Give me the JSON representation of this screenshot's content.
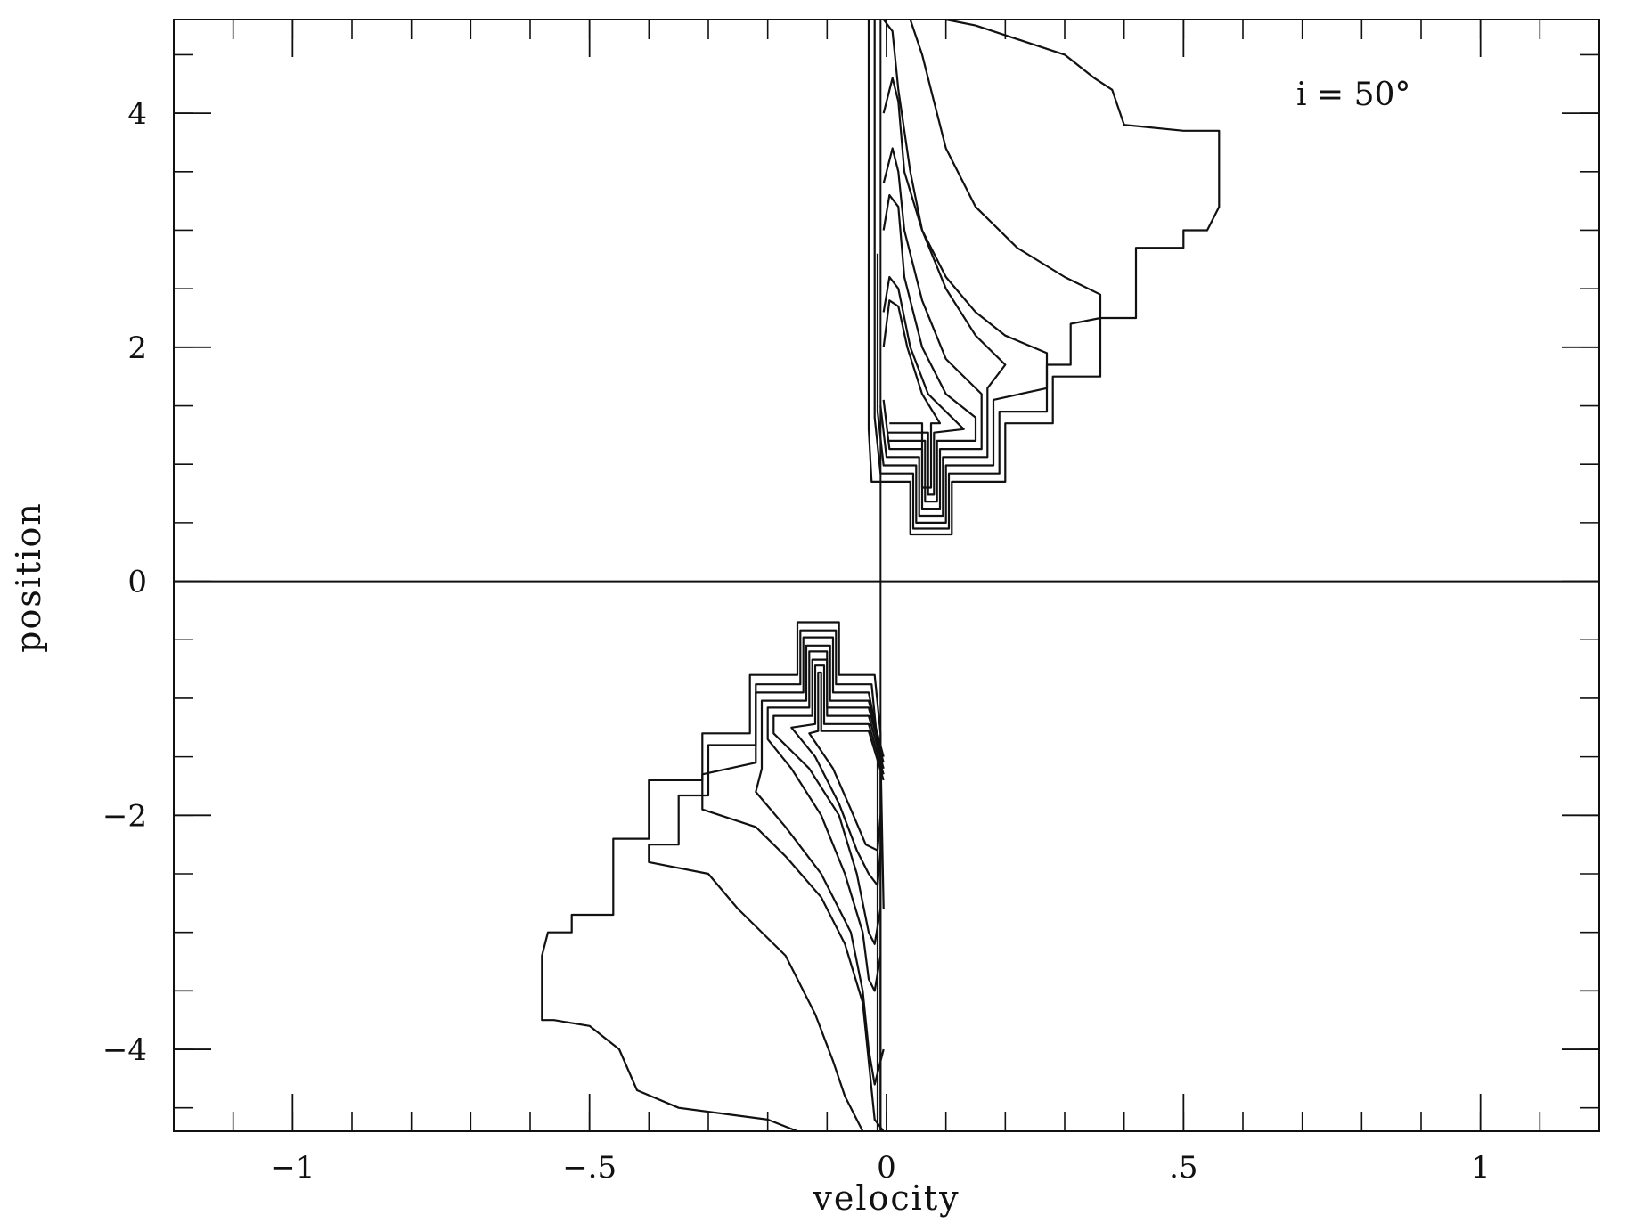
{
  "chart_data": {
    "type": "line",
    "title": "",
    "xlabel": "velocity",
    "ylabel": "position",
    "annotation": "i = 50°",
    "xlim": [
      -1.2,
      1.2
    ],
    "ylim": [
      -4.7,
      4.8
    ],
    "x_ticks": [
      {
        "value": -1,
        "label": "−1"
      },
      {
        "value": -0.5,
        "label": "−.5"
      },
      {
        "value": 0,
        "label": "0"
      },
      {
        "value": 0.5,
        "label": ".5"
      },
      {
        "value": 1,
        "label": "1"
      }
    ],
    "y_ticks": [
      {
        "value": -4,
        "label": "−4"
      },
      {
        "value": -2,
        "label": "−2"
      },
      {
        "value": 0,
        "label": "0"
      },
      {
        "value": 2,
        "label": "2"
      },
      {
        "value": 4,
        "label": "4"
      }
    ],
    "x_minor_step": 0.1,
    "y_minor_step": 0.5,
    "grid": false,
    "reference_lines": [
      {
        "orientation": "horizontal",
        "value": 0
      },
      {
        "orientation": "vertical",
        "value": -0.01
      }
    ],
    "series": [
      {
        "points": [
          [
            -0.03,
            4.8
          ],
          [
            -0.03,
            3.0
          ],
          [
            -0.03,
            2.0
          ],
          [
            -0.03,
            1.3
          ],
          [
            -0.025,
            0.85
          ],
          [
            0.04,
            0.85
          ],
          [
            0.04,
            0.4
          ],
          [
            0.11,
            0.4
          ],
          [
            0.11,
            0.85
          ],
          [
            0.2,
            0.85
          ],
          [
            0.2,
            1.35
          ],
          [
            0.28,
            1.35
          ],
          [
            0.28,
            1.75
          ],
          [
            0.36,
            1.75
          ],
          [
            0.36,
            2.25
          ],
          [
            0.42,
            2.25
          ],
          [
            0.42,
            2.85
          ],
          [
            0.5,
            2.85
          ],
          [
            0.5,
            3.0
          ],
          [
            0.54,
            3.0
          ],
          [
            0.56,
            3.2
          ],
          [
            0.56,
            3.85
          ],
          [
            0.5,
            3.85
          ],
          [
            0.4,
            3.9
          ],
          [
            0.38,
            4.2
          ],
          [
            0.35,
            4.3
          ],
          [
            0.3,
            4.5
          ],
          [
            0.15,
            4.75
          ],
          [
            0.1,
            4.8
          ]
        ]
      },
      {
        "points": [
          [
            -0.02,
            4.8
          ],
          [
            -0.02,
            3.0
          ],
          [
            -0.02,
            1.4
          ],
          [
            -0.01,
            0.92
          ],
          [
            0.045,
            0.92
          ],
          [
            0.045,
            0.45
          ],
          [
            0.105,
            0.45
          ],
          [
            0.105,
            0.92
          ],
          [
            0.19,
            0.92
          ],
          [
            0.19,
            1.45
          ],
          [
            0.27,
            1.45
          ],
          [
            0.27,
            1.85
          ],
          [
            0.31,
            1.85
          ],
          [
            0.31,
            2.2
          ],
          [
            0.36,
            2.25
          ],
          [
            0.36,
            2.45
          ],
          [
            0.3,
            2.6
          ],
          [
            0.22,
            2.85
          ],
          [
            0.15,
            3.2
          ],
          [
            0.1,
            3.7
          ],
          [
            0.08,
            4.1
          ],
          [
            0.06,
            4.5
          ],
          [
            0.04,
            4.8
          ]
        ]
      },
      {
        "points": [
          [
            -0.015,
            2.8
          ],
          [
            -0.015,
            1.45
          ],
          [
            -0.005,
            0.99
          ],
          [
            0.05,
            0.99
          ],
          [
            0.05,
            0.5
          ],
          [
            0.1,
            0.5
          ],
          [
            0.1,
            0.99
          ],
          [
            0.18,
            0.99
          ],
          [
            0.18,
            1.55
          ],
          [
            0.27,
            1.65
          ],
          [
            0.27,
            1.95
          ],
          [
            0.2,
            2.1
          ],
          [
            0.15,
            2.3
          ],
          [
            0.1,
            2.6
          ],
          [
            0.06,
            3.0
          ],
          [
            0.04,
            3.5
          ],
          [
            0.02,
            4.2
          ],
          [
            0.01,
            4.7
          ],
          [
            -0.005,
            4.8
          ]
        ]
      },
      {
        "points": [
          [
            -0.01,
            1.5
          ],
          [
            0.0,
            1.06
          ],
          [
            0.055,
            1.06
          ],
          [
            0.055,
            0.56
          ],
          [
            0.095,
            0.56
          ],
          [
            0.095,
            1.06
          ],
          [
            0.17,
            1.06
          ],
          [
            0.17,
            1.65
          ],
          [
            0.2,
            1.85
          ],
          [
            0.15,
            2.1
          ],
          [
            0.1,
            2.5
          ],
          [
            0.06,
            3.0
          ],
          [
            0.03,
            3.5
          ],
          [
            0.02,
            4.1
          ],
          [
            0.01,
            4.3
          ],
          [
            -0.005,
            4.0
          ]
        ]
      },
      {
        "points": [
          [
            -0.005,
            1.55
          ],
          [
            0.005,
            1.13
          ],
          [
            0.06,
            1.13
          ],
          [
            0.06,
            0.62
          ],
          [
            0.09,
            0.62
          ],
          [
            0.09,
            1.13
          ],
          [
            0.16,
            1.13
          ],
          [
            0.16,
            1.6
          ],
          [
            0.1,
            1.9
          ],
          [
            0.06,
            2.4
          ],
          [
            0.03,
            3.0
          ],
          [
            0.02,
            3.5
          ],
          [
            0.01,
            3.7
          ],
          [
            -0.005,
            3.4
          ]
        ]
      },
      {
        "points": [
          [
            0.0,
            1.2
          ],
          [
            0.065,
            1.2
          ],
          [
            0.065,
            0.68
          ],
          [
            0.085,
            0.68
          ],
          [
            0.085,
            1.2
          ],
          [
            0.15,
            1.2
          ],
          [
            0.15,
            1.4
          ],
          [
            0.1,
            1.6
          ],
          [
            0.06,
            2.0
          ],
          [
            0.03,
            2.6
          ],
          [
            0.02,
            3.2
          ],
          [
            0.005,
            3.3
          ],
          [
            -0.005,
            3.0
          ]
        ]
      },
      {
        "points": [
          [
            0.0,
            1.27
          ],
          [
            0.07,
            1.27
          ],
          [
            0.07,
            0.74
          ],
          [
            0.08,
            0.74
          ],
          [
            0.08,
            1.27
          ],
          [
            0.13,
            1.3
          ],
          [
            0.07,
            1.6
          ],
          [
            0.04,
            2.0
          ],
          [
            0.02,
            2.5
          ],
          [
            0.005,
            2.6
          ],
          [
            -0.005,
            2.3
          ]
        ]
      },
      {
        "points": [
          [
            0.005,
            1.35
          ],
          [
            0.06,
            1.35
          ],
          [
            0.06,
            0.8
          ],
          [
            0.075,
            0.8
          ],
          [
            0.075,
            1.35
          ],
          [
            0.09,
            1.35
          ],
          [
            0.06,
            1.6
          ],
          [
            0.035,
            2.0
          ],
          [
            0.02,
            2.35
          ],
          [
            0.005,
            2.4
          ],
          [
            -0.005,
            2.0
          ]
        ]
      },
      {
        "points": [
          [
            -0.01,
            -4.7
          ],
          [
            -0.01,
            -3.0
          ],
          [
            -0.01,
            -2.0
          ],
          [
            -0.01,
            -1.3
          ],
          [
            -0.02,
            -0.8
          ],
          [
            -0.08,
            -0.8
          ],
          [
            -0.08,
            -0.35
          ],
          [
            -0.15,
            -0.35
          ],
          [
            -0.15,
            -0.8
          ],
          [
            -0.23,
            -0.8
          ],
          [
            -0.23,
            -1.3
          ],
          [
            -0.31,
            -1.3
          ],
          [
            -0.31,
            -1.7
          ],
          [
            -0.4,
            -1.7
          ],
          [
            -0.4,
            -2.2
          ],
          [
            -0.46,
            -2.2
          ],
          [
            -0.46,
            -2.85
          ],
          [
            -0.53,
            -2.85
          ],
          [
            -0.53,
            -3.0
          ],
          [
            -0.57,
            -3.0
          ],
          [
            -0.58,
            -3.2
          ],
          [
            -0.58,
            -3.75
          ],
          [
            -0.56,
            -3.75
          ],
          [
            -0.5,
            -3.8
          ],
          [
            -0.45,
            -4.0
          ],
          [
            -0.42,
            -4.35
          ],
          [
            -0.35,
            -4.5
          ],
          [
            -0.2,
            -4.6
          ],
          [
            -0.15,
            -4.7
          ]
        ]
      },
      {
        "points": [
          [
            -0.015,
            -4.7
          ],
          [
            -0.015,
            -3.0
          ],
          [
            -0.015,
            -1.4
          ],
          [
            -0.025,
            -0.88
          ],
          [
            -0.085,
            -0.88
          ],
          [
            -0.085,
            -0.42
          ],
          [
            -0.145,
            -0.42
          ],
          [
            -0.145,
            -0.88
          ],
          [
            -0.22,
            -0.88
          ],
          [
            -0.22,
            -1.4
          ],
          [
            -0.3,
            -1.4
          ],
          [
            -0.3,
            -1.83
          ],
          [
            -0.35,
            -1.83
          ],
          [
            -0.35,
            -2.25
          ],
          [
            -0.4,
            -2.25
          ],
          [
            -0.4,
            -2.4
          ],
          [
            -0.3,
            -2.5
          ],
          [
            -0.25,
            -2.8
          ],
          [
            -0.17,
            -3.2
          ],
          [
            -0.12,
            -3.7
          ],
          [
            -0.09,
            -4.1
          ],
          [
            -0.07,
            -4.4
          ],
          [
            -0.04,
            -4.7
          ]
        ]
      },
      {
        "points": [
          [
            -0.005,
            -2.8
          ],
          [
            -0.01,
            -1.45
          ],
          [
            -0.03,
            -0.95
          ],
          [
            -0.09,
            -0.95
          ],
          [
            -0.09,
            -0.48
          ],
          [
            -0.14,
            -0.48
          ],
          [
            -0.14,
            -0.95
          ],
          [
            -0.22,
            -0.95
          ],
          [
            -0.22,
            -1.55
          ],
          [
            -0.31,
            -1.65
          ],
          [
            -0.31,
            -1.95
          ],
          [
            -0.22,
            -2.1
          ],
          [
            -0.17,
            -2.35
          ],
          [
            -0.11,
            -2.7
          ],
          [
            -0.07,
            -3.1
          ],
          [
            -0.04,
            -3.6
          ],
          [
            -0.03,
            -4.1
          ],
          [
            -0.02,
            -4.6
          ],
          [
            -0.005,
            -4.7
          ]
        ]
      },
      {
        "points": [
          [
            -0.005,
            -1.5
          ],
          [
            -0.03,
            -1.02
          ],
          [
            -0.095,
            -1.02
          ],
          [
            -0.095,
            -0.55
          ],
          [
            -0.135,
            -0.55
          ],
          [
            -0.135,
            -1.02
          ],
          [
            -0.21,
            -1.02
          ],
          [
            -0.21,
            -1.6
          ],
          [
            -0.22,
            -1.8
          ],
          [
            -0.17,
            -2.1
          ],
          [
            -0.11,
            -2.5
          ],
          [
            -0.06,
            -3.0
          ],
          [
            -0.04,
            -3.5
          ],
          [
            -0.03,
            -4.0
          ],
          [
            -0.02,
            -4.3
          ],
          [
            -0.005,
            -4.0
          ]
        ]
      },
      {
        "points": [
          [
            -0.005,
            -1.55
          ],
          [
            -0.03,
            -1.08
          ],
          [
            -0.1,
            -1.08
          ],
          [
            -0.1,
            -0.6
          ],
          [
            -0.13,
            -0.6
          ],
          [
            -0.13,
            -1.08
          ],
          [
            -0.2,
            -1.08
          ],
          [
            -0.2,
            -1.35
          ],
          [
            -0.16,
            -1.6
          ],
          [
            -0.11,
            -2.0
          ],
          [
            -0.07,
            -2.5
          ],
          [
            -0.04,
            -3.0
          ],
          [
            -0.03,
            -3.4
          ],
          [
            -0.02,
            -3.5
          ],
          [
            -0.01,
            -3.2
          ]
        ]
      },
      {
        "points": [
          [
            -0.005,
            -1.6
          ],
          [
            -0.03,
            -1.15
          ],
          [
            -0.1,
            -1.15
          ],
          [
            -0.1,
            -0.67
          ],
          [
            -0.125,
            -0.67
          ],
          [
            -0.125,
            -1.15
          ],
          [
            -0.19,
            -1.15
          ],
          [
            -0.19,
            -1.3
          ],
          [
            -0.13,
            -1.6
          ],
          [
            -0.08,
            -2.0
          ],
          [
            -0.05,
            -2.5
          ],
          [
            -0.03,
            -3.0
          ],
          [
            -0.02,
            -3.1
          ],
          [
            -0.01,
            -2.8
          ]
        ]
      },
      {
        "points": [
          [
            -0.005,
            -1.65
          ],
          [
            -0.03,
            -1.22
          ],
          [
            -0.105,
            -1.22
          ],
          [
            -0.105,
            -0.72
          ],
          [
            -0.12,
            -0.72
          ],
          [
            -0.12,
            -1.22
          ],
          [
            -0.16,
            -1.25
          ],
          [
            -0.12,
            -1.5
          ],
          [
            -0.08,
            -1.9
          ],
          [
            -0.05,
            -2.3
          ],
          [
            -0.03,
            -2.5
          ],
          [
            -0.015,
            -2.6
          ],
          [
            -0.01,
            -2.3
          ]
        ]
      },
      {
        "points": [
          [
            -0.005,
            -1.7
          ],
          [
            -0.03,
            -1.28
          ],
          [
            -0.11,
            -1.28
          ],
          [
            -0.11,
            -0.78
          ],
          [
            -0.115,
            -0.78
          ],
          [
            -0.115,
            -1.28
          ],
          [
            -0.13,
            -1.3
          ],
          [
            -0.09,
            -1.6
          ],
          [
            -0.06,
            -1.95
          ],
          [
            -0.035,
            -2.25
          ],
          [
            -0.015,
            -2.3
          ],
          [
            -0.01,
            -2.0
          ]
        ]
      }
    ]
  }
}
